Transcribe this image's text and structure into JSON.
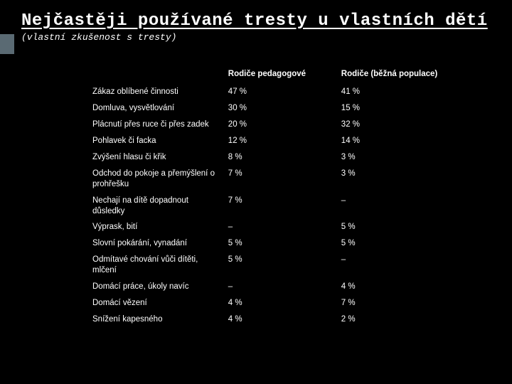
{
  "title": "Nejčastěji používané tresty u vlastních dětí",
  "subtitle": "(vlastní zkušenost s tresty)",
  "colors": {
    "background": "#000000",
    "text": "#ffffff",
    "accent": "#5a6a73"
  },
  "table": {
    "columns": [
      "",
      "Rodiče pedagogové",
      "Rodiče (běžná populace)"
    ],
    "column_widths_pct": [
      36,
      30,
      34
    ],
    "rows": [
      [
        "Zákaz oblíbené činnosti",
        "47 %",
        "41 %"
      ],
      [
        "Domluva, vysvětlování",
        "30 %",
        "15 %"
      ],
      [
        "Plácnutí přes ruce či přes zadek",
        "20 %",
        "32 %"
      ],
      [
        "Pohlavek či facka",
        "12 %",
        "14 %"
      ],
      [
        "Zvýšení hlasu či křik",
        "8 %",
        "3 %"
      ],
      [
        "Odchod do pokoje a přemýšlení o prohřešku",
        "7 %",
        "3 %"
      ],
      [
        "Nechají na dítě dopadnout důsledky",
        "7 %",
        "–"
      ],
      [
        "Výprask, bití",
        "–",
        "5 %"
      ],
      [
        "Slovní pokárání, vynadání",
        "5 %",
        "5 %"
      ],
      [
        "Odmítavé chování vůči dítěti, mlčení",
        "5 %",
        "–"
      ],
      [
        "Domácí práce, úkoly navíc",
        "–",
        "4 %"
      ],
      [
        "Domácí vězení",
        "4 %",
        "7 %"
      ],
      [
        "Snížení kapesného",
        "4 %",
        "2 %"
      ]
    ],
    "fontsize": 11.5,
    "header_fontsize": 11.5
  },
  "typography": {
    "title_font": "Courier New",
    "title_fontsize": 24,
    "title_weight": "bold",
    "title_underline": true,
    "subtitle_font": "Courier New",
    "subtitle_fontsize": 13,
    "subtitle_style": "italic",
    "body_font": "Arial"
  }
}
